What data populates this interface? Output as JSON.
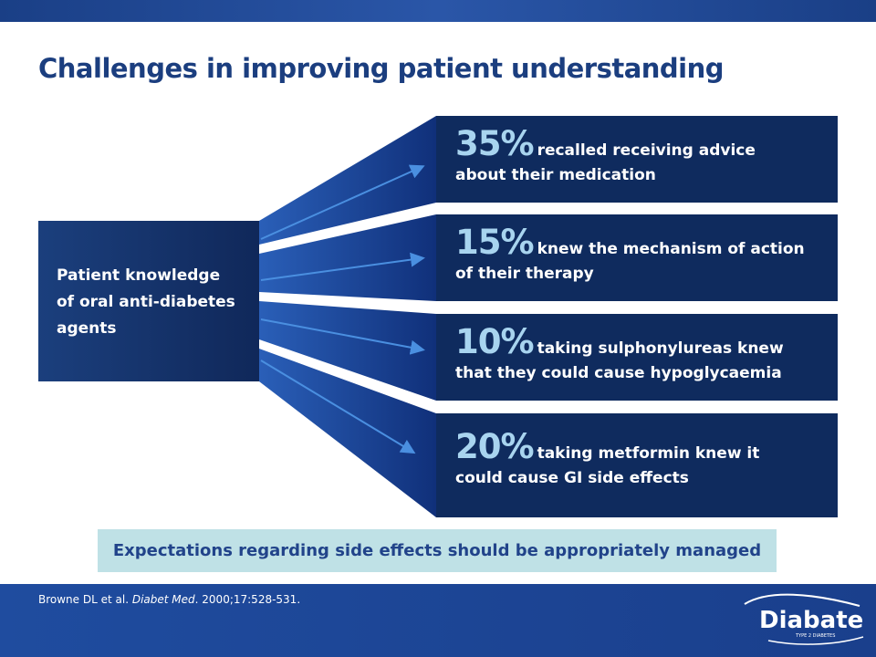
{
  "title": "Challenges in improving patient understanding",
  "source": {
    "lines": [
      "Patient knowledge",
      "of oral anti-diabetes",
      "agents"
    ]
  },
  "stats": [
    {
      "percent": "35%",
      "text1": "recalled receiving advice",
      "text2": "about their medication"
    },
    {
      "percent": "15%",
      "text1": "knew the mechanism of action",
      "text2": "of their therapy"
    },
    {
      "percent": "10%",
      "text1": "taking sulphonylureas knew",
      "text2": "that they could cause hypoglycaemia"
    },
    {
      "percent": "20%",
      "text1": "taking metformin knew it",
      "text2": "could cause GI side effects"
    }
  ],
  "callout": "Expectations regarding side effects should be appropriately managed",
  "reference": {
    "authors": "Browne DL et al.",
    "journal": "Diabet Med",
    "details": ". 2000;17:528-531."
  },
  "logo": {
    "name": "Diabate",
    "tagline": "TYPE 2 DIABETES"
  },
  "colors": {
    "title": "#1b3e7f",
    "box_fill": "#0f2b5e",
    "percent": "#a8d4ef",
    "callout_bg": "#bfe1e6",
    "footer": "#1f4c9f"
  }
}
